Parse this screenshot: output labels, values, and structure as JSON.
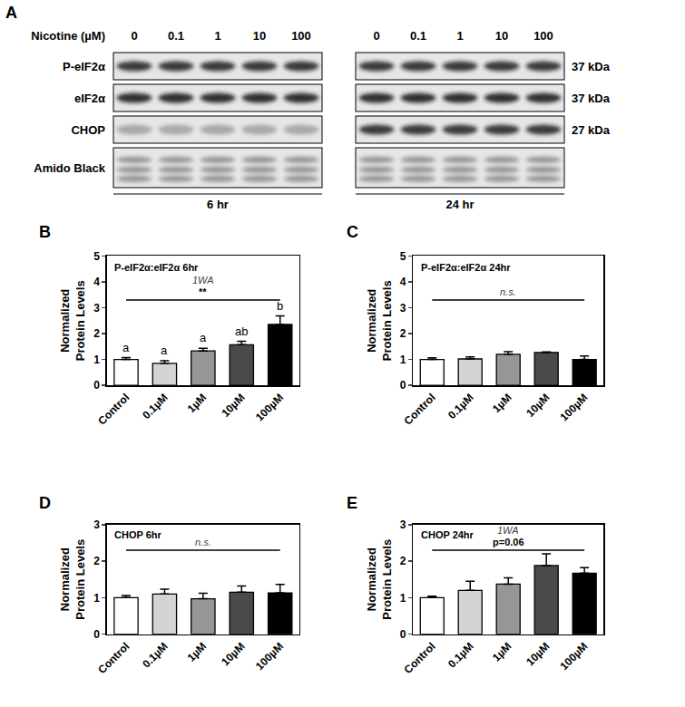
{
  "blot": {
    "panel": "A",
    "treatment": "Nicotine (µM)",
    "doses": [
      0,
      0.1,
      1,
      10,
      100
    ],
    "rows": [
      {
        "name": "P-eIF2α",
        "size": "37 kDa"
      },
      {
        "name": "eIF2α",
        "size": "37 kDa"
      },
      {
        "name": "CHOP",
        "size": "27 kDa"
      },
      {
        "name": "Amido Black"
      }
    ],
    "times": [
      "6 hr",
      "24 hr"
    ]
  },
  "chart_data": [
    {
      "panel": "B",
      "type": "bar",
      "title": "P-eIF2α:eIF2α 6hr",
      "y_label": "Normalized\nProtein Levels",
      "categories": [
        "Control",
        "0.1µM",
        "1µM",
        "10µM",
        "100µM"
      ],
      "values": [
        1.0,
        0.85,
        1.33,
        1.57,
        2.35
      ],
      "errors": [
        0.07,
        0.1,
        0.1,
        0.13,
        0.33
      ],
      "colors": [
        "#ffffff",
        "#d4d4d4",
        "#969696",
        "#4a4a4a",
        "#000000"
      ],
      "ylim": [
        0,
        5
      ],
      "yticks": [
        0,
        1,
        2,
        3,
        4,
        5
      ],
      "group_labels": [
        "a",
        "a",
        "a",
        "ab",
        "b"
      ],
      "bracket": {
        "y": 3.3,
        "texts": [
          "1WA",
          "**"
        ]
      }
    },
    {
      "panel": "C",
      "type": "bar",
      "title": "P-eIF2α:eIF2α 24hr",
      "y_label": "Normalized\nProtein Levels",
      "categories": [
        "Control",
        "0.1µM",
        "1µM",
        "10µM",
        "100µM"
      ],
      "values": [
        1.0,
        1.02,
        1.2,
        1.27,
        1.0
      ],
      "errors": [
        0.06,
        0.08,
        0.1,
        0.02,
        0.13
      ],
      "colors": [
        "#ffffff",
        "#d4d4d4",
        "#969696",
        "#4a4a4a",
        "#000000"
      ],
      "ylim": [
        0,
        5
      ],
      "yticks": [
        0,
        1,
        2,
        3,
        4,
        5
      ],
      "bracket": {
        "y": 3.3,
        "texts": [
          "n.s."
        ]
      }
    },
    {
      "panel": "D",
      "type": "bar",
      "title": "CHOP 6hr",
      "y_label": "Normalized\nProtein Levels",
      "categories": [
        "Control",
        "0.1µM",
        "1µM",
        "10µM",
        "100µM"
      ],
      "values": [
        1.0,
        1.1,
        0.97,
        1.15,
        1.13
      ],
      "errors": [
        0.06,
        0.13,
        0.15,
        0.17,
        0.23
      ],
      "colors": [
        "#ffffff",
        "#d4d4d4",
        "#969696",
        "#4a4a4a",
        "#000000"
      ],
      "ylim": [
        0,
        3
      ],
      "yticks": [
        0,
        1,
        2,
        3
      ],
      "bracket": {
        "y": 2.3,
        "texts": [
          "n.s."
        ]
      }
    },
    {
      "panel": "E",
      "type": "bar",
      "title": "CHOP 24hr",
      "y_label": "Normalized\nProtein Levels",
      "categories": [
        "Control",
        "0.1µM",
        "1µM",
        "10µM",
        "100µM"
      ],
      "values": [
        1.0,
        1.2,
        1.37,
        1.88,
        1.67
      ],
      "errors": [
        0.04,
        0.25,
        0.17,
        0.32,
        0.15
      ],
      "colors": [
        "#ffffff",
        "#d4d4d4",
        "#969696",
        "#4a4a4a",
        "#000000"
      ],
      "ylim": [
        0,
        3
      ],
      "yticks": [
        0,
        1,
        2,
        3
      ],
      "bracket": {
        "y": 2.3,
        "texts": [
          "1WA",
          "p=0.06"
        ]
      }
    }
  ]
}
